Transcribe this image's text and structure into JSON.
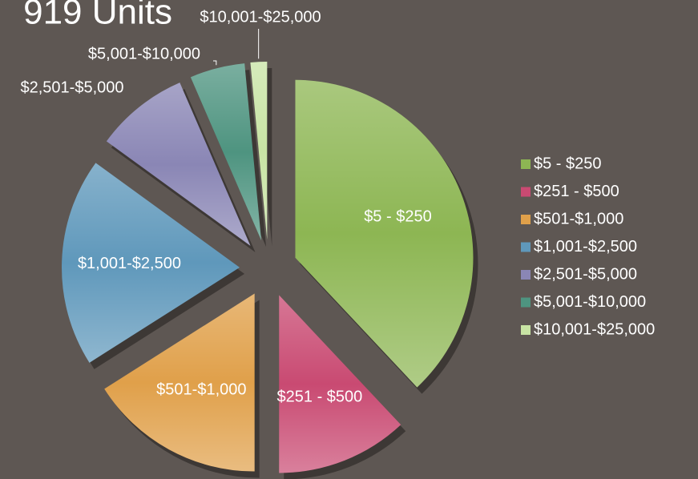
{
  "chart_data": {
    "type": "pie",
    "title": "919 Units",
    "categories": [
      "$5 - $250",
      "$251 - $500",
      "$501-$1,000",
      "$1,001-$2,500",
      "$2,501-$5,000",
      "$5,001-$10,000",
      "$10,001-$25,000"
    ],
    "values": [
      38,
      12,
      16,
      19,
      8.5,
      5,
      1.5
    ],
    "colors": [
      "#8db653",
      "#c94a72",
      "#e0a04a",
      "#5f98bb",
      "#8a86b5",
      "#4e9480",
      "#c8e4a4"
    ],
    "legend": "right"
  }
}
